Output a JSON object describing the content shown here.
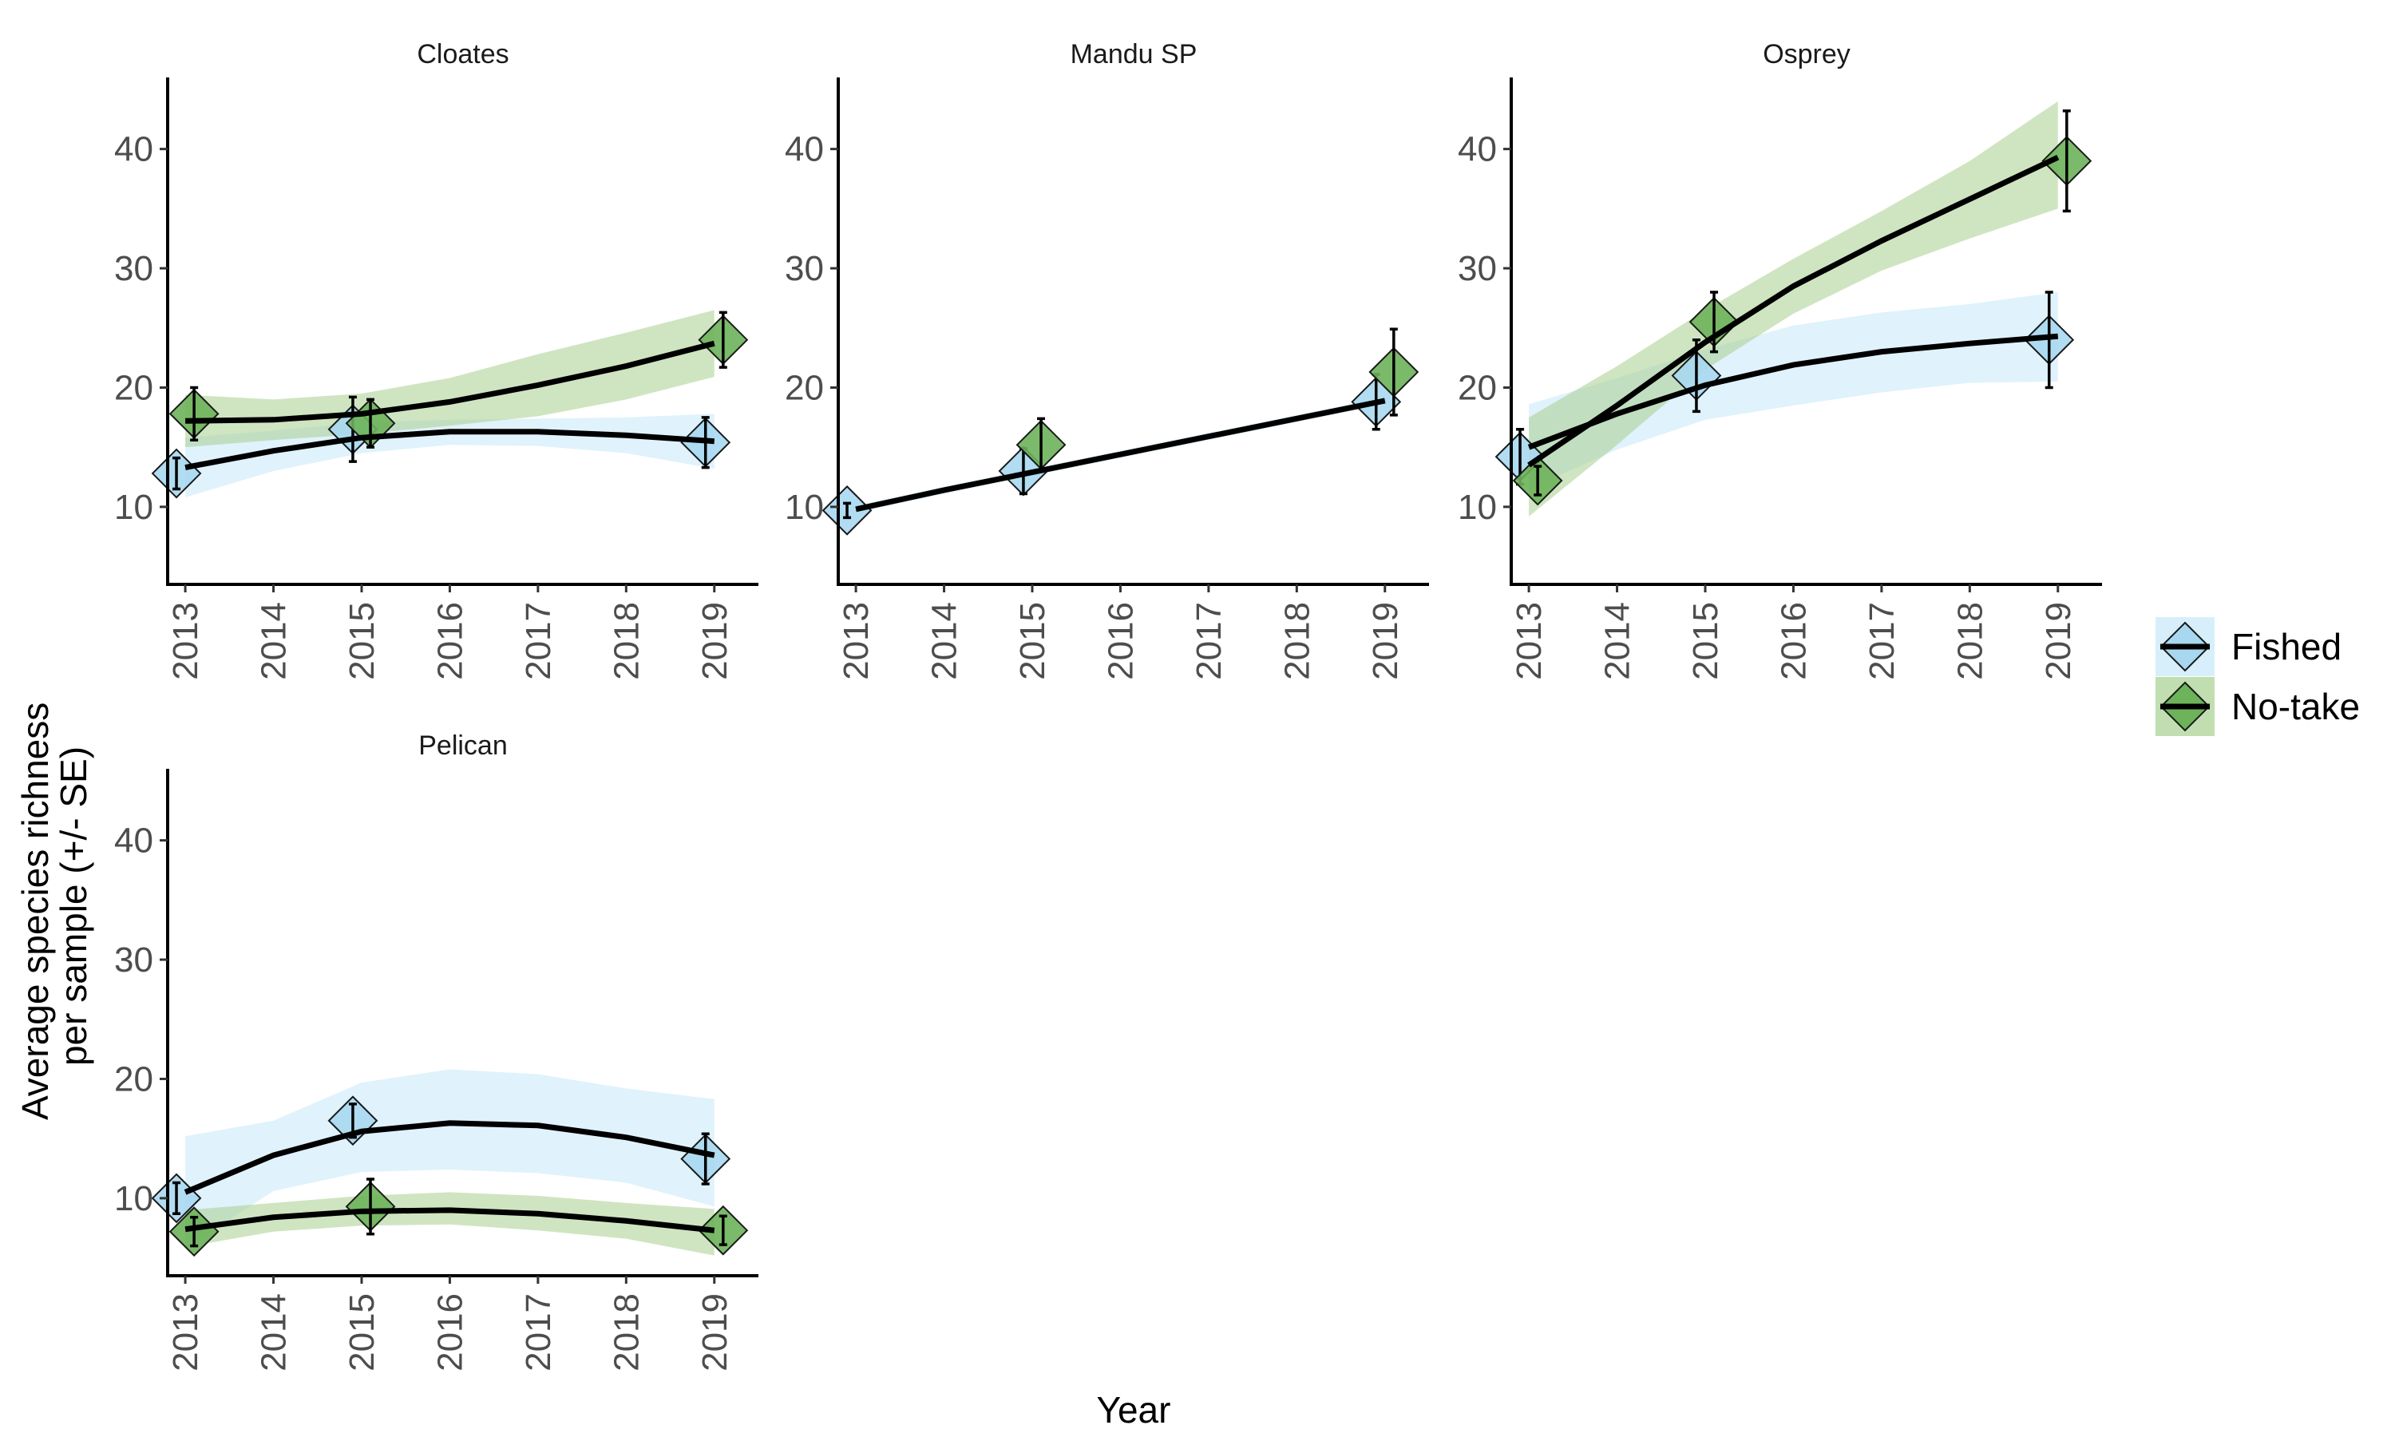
{
  "chart_data": {
    "type": "line",
    "xlabel": "Year",
    "ylabel": "Average species richness\nper sample (+/- SE)",
    "x_ticks": [
      2013,
      2014,
      2015,
      2016,
      2017,
      2018,
      2019
    ],
    "y_ticks": [
      10,
      20,
      30,
      40
    ],
    "xlim": [
      2012.8,
      2019.5
    ],
    "ylim": [
      3.5,
      46
    ],
    "legend": {
      "position": "right",
      "entries": [
        {
          "name": "Fished",
          "color": "#a8d8f0",
          "band_color": "#c6e8f9"
        },
        {
          "name": "No-take",
          "color": "#6db35a",
          "band_color": "#a7d08e"
        }
      ]
    },
    "panels": [
      {
        "title": "Cloates",
        "series": [
          {
            "name": "Fished",
            "points": [
              {
                "x": 2013,
                "y": 12.8,
                "se": 1.3
              },
              {
                "x": 2015,
                "y": 16.5,
                "se": 2.7
              },
              {
                "x": 2019,
                "y": 15.4,
                "se": 2.1
              }
            ],
            "fit": [
              [
                2013,
                13.3
              ],
              [
                2014,
                14.7
              ],
              [
                2015,
                15.8
              ],
              [
                2016,
                16.3
              ],
              [
                2017,
                16.3
              ],
              [
                2018,
                16.0
              ],
              [
                2019,
                15.5
              ]
            ],
            "band_lower": [
              10.8,
              13.0,
              14.5,
              15.2,
              15.1,
              14.5,
              13.2
            ],
            "band_upper": [
              15.8,
              16.4,
              17.1,
              17.3,
              17.4,
              17.5,
              17.8
            ]
          },
          {
            "name": "No-take",
            "points": [
              {
                "x": 2013,
                "y": 17.8,
                "se": 2.2
              },
              {
                "x": 2015,
                "y": 17.0,
                "se": 2.0
              },
              {
                "x": 2019,
                "y": 24.0,
                "se": 2.3
              }
            ],
            "fit": [
              [
                2013,
                17.2
              ],
              [
                2014,
                17.3
              ],
              [
                2015,
                17.8
              ],
              [
                2016,
                18.8
              ],
              [
                2017,
                20.2
              ],
              [
                2018,
                21.8
              ],
              [
                2019,
                23.7
              ]
            ],
            "band_lower": [
              15.0,
              15.6,
              16.1,
              16.8,
              17.6,
              19.0,
              20.9
            ],
            "band_upper": [
              19.4,
              19.0,
              19.5,
              20.8,
              22.8,
              24.6,
              26.5
            ]
          }
        ]
      },
      {
        "title": "Mandu SP",
        "series": [
          {
            "name": "Fished",
            "points": [
              {
                "x": 2013,
                "y": 9.7,
                "se": 0.6
              },
              {
                "x": 2015,
                "y": 13.0,
                "se": 1.9
              },
              {
                "x": 2019,
                "y": 18.8,
                "se": 2.3
              }
            ],
            "fit": [
              [
                2013,
                9.8
              ],
              [
                2014,
                11.4
              ],
              [
                2015,
                12.9
              ],
              [
                2016,
                14.4
              ],
              [
                2017,
                15.9
              ],
              [
                2018,
                17.4
              ],
              [
                2019,
                18.9
              ]
            ],
            "band_lower": [
              9.5,
              11.1,
              12.6,
              14.1,
              15.6,
              17.1,
              18.6
            ],
            "band_upper": [
              10.1,
              11.7,
              13.2,
              14.7,
              16.2,
              17.7,
              19.2
            ]
          },
          {
            "name": "No-take",
            "points": [
              {
                "x": 2015,
                "y": 15.2,
                "se": 2.2
              },
              {
                "x": 2019,
                "y": 21.3,
                "se": 3.6
              }
            ],
            "fit": [],
            "band_lower": [],
            "band_upper": []
          }
        ]
      },
      {
        "title": "Osprey",
        "series": [
          {
            "name": "Fished",
            "points": [
              {
                "x": 2013,
                "y": 14.2,
                "se": 2.3
              },
              {
                "x": 2015,
                "y": 21.0,
                "se": 3.0
              },
              {
                "x": 2019,
                "y": 24.0,
                "se": 4.0
              }
            ],
            "fit": [
              [
                2013,
                15.0
              ],
              [
                2014,
                17.8
              ],
              [
                2015,
                20.2
              ],
              [
                2016,
                21.9
              ],
              [
                2017,
                23.0
              ],
              [
                2018,
                23.7
              ],
              [
                2019,
                24.3
              ]
            ],
            "band_lower": [
              11.5,
              14.8,
              17.3,
              18.5,
              19.6,
              20.4,
              20.5
            ],
            "band_upper": [
              18.6,
              20.8,
              23.2,
              25.2,
              26.3,
              27.0,
              28.0
            ]
          },
          {
            "name": "No-take",
            "points": [
              {
                "x": 2013,
                "y": 12.2,
                "se": 1.2
              },
              {
                "x": 2015,
                "y": 25.5,
                "se": 2.5
              },
              {
                "x": 2019,
                "y": 39.0,
                "se": 4.2
              }
            ],
            "fit": [
              [
                2013,
                13.5
              ],
              [
                2014,
                18.5
              ],
              [
                2015,
                23.8
              ],
              [
                2016,
                28.5
              ],
              [
                2017,
                32.3
              ],
              [
                2018,
                35.8
              ],
              [
                2019,
                39.3
              ]
            ],
            "band_lower": [
              9.2,
              15.2,
              21.5,
              26.2,
              29.8,
              32.5,
              35.0
            ],
            "band_upper": [
              17.5,
              21.8,
              26.5,
              30.8,
              34.8,
              39.0,
              44.0
            ]
          }
        ]
      },
      {
        "title": "Pelican",
        "series": [
          {
            "name": "Fished",
            "points": [
              {
                "x": 2013,
                "y": 10.0,
                "se": 1.3
              },
              {
                "x": 2015,
                "y": 16.5,
                "se": 1.4
              },
              {
                "x": 2019,
                "y": 13.3,
                "se": 2.1
              }
            ],
            "fit": [
              [
                2013,
                10.5
              ],
              [
                2014,
                13.6
              ],
              [
                2015,
                15.6
              ],
              [
                2016,
                16.3
              ],
              [
                2017,
                16.1
              ],
              [
                2018,
                15.1
              ],
              [
                2019,
                13.6
              ]
            ],
            "band_lower": [
              5.8,
              10.6,
              12.2,
              12.4,
              12.1,
              11.3,
              9.3
            ],
            "band_upper": [
              15.2,
              16.5,
              19.7,
              20.8,
              20.4,
              19.2,
              18.3
            ]
          },
          {
            "name": "No-take",
            "points": [
              {
                "x": 2013,
                "y": 7.2,
                "se": 1.2
              },
              {
                "x": 2015,
                "y": 9.3,
                "se": 2.3
              },
              {
                "x": 2019,
                "y": 7.3,
                "se": 1.2
              }
            ],
            "fit": [
              [
                2013,
                7.4
              ],
              [
                2014,
                8.4
              ],
              [
                2015,
                8.9
              ],
              [
                2016,
                9.0
              ],
              [
                2017,
                8.7
              ],
              [
                2018,
                8.1
              ],
              [
                2019,
                7.3
              ]
            ],
            "band_lower": [
              5.9,
              7.2,
              7.7,
              7.8,
              7.3,
              6.6,
              5.2
            ],
            "band_upper": [
              9.0,
              9.6,
              10.2,
              10.5,
              10.2,
              9.6,
              9.1
            ]
          }
        ]
      }
    ]
  }
}
